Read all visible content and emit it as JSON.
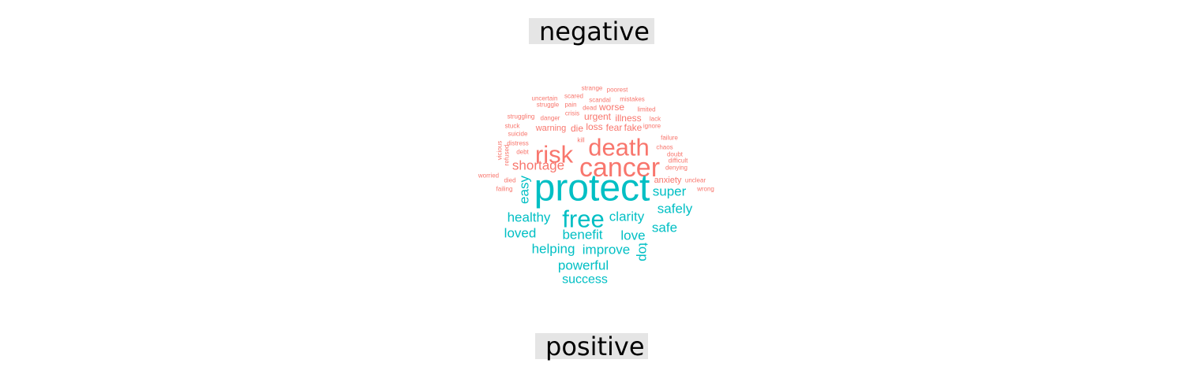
{
  "chart_data": {
    "type": "wordcloud",
    "groups": [
      {
        "name": "negative",
        "color": "#f8766d",
        "words": [
          "death",
          "cancer",
          "risk",
          "shortage",
          "worse",
          "urgent",
          "illness",
          "loss",
          "fear",
          "fake",
          "die",
          "warning",
          "anxiety",
          "strange",
          "poorest",
          "scared",
          "uncertain",
          "scandal",
          "mistakes",
          "struggle",
          "pain",
          "dead",
          "limited",
          "crisis",
          "danger",
          "struggling",
          "lack",
          "stuck",
          "ignore",
          "suicide",
          "kill",
          "failure",
          "distress",
          "chaos",
          "debt",
          "doubt",
          "vicious",
          "refused",
          "difficult",
          "denying",
          "worried",
          "died",
          "unclear",
          "failing",
          "wrong"
        ]
      },
      {
        "name": "positive",
        "color": "#00bfc4",
        "words": [
          "protect",
          "free",
          "easy",
          "super",
          "healthy",
          "clarity",
          "safely",
          "loved",
          "benefit",
          "love",
          "safe",
          "top",
          "helping",
          "improve",
          "powerful",
          "success"
        ]
      }
    ],
    "panel_labels": [
      "negative",
      "positive"
    ]
  }
}
